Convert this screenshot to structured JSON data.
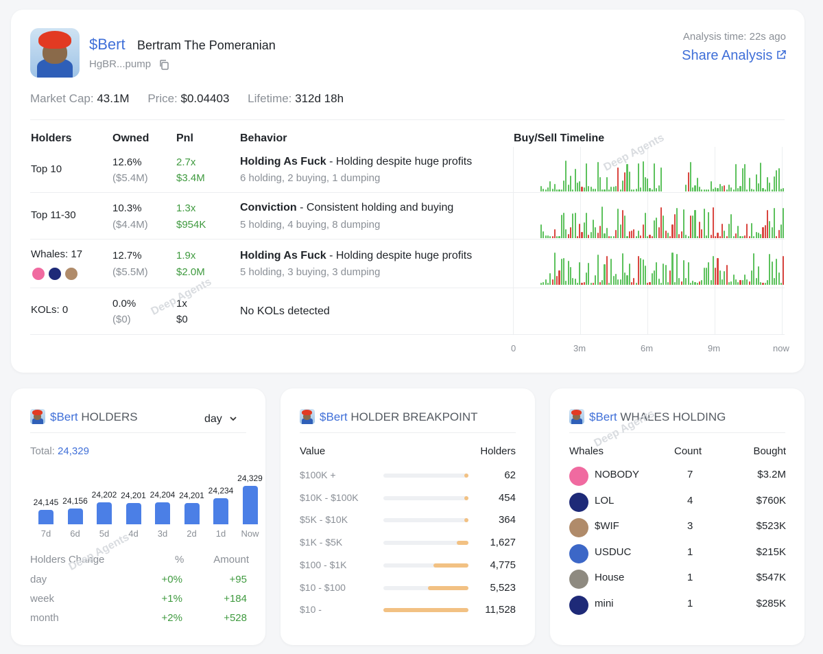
{
  "token": {
    "symbol": "$Bert",
    "name": "Bertram The Pomeranian",
    "address": "HgBR...pump",
    "analysis_time": "Analysis time: 22s ago",
    "share_label": "Share Analysis"
  },
  "stats": {
    "market_cap_label": "Market Cap:",
    "market_cap": "43.1M",
    "price_label": "Price:",
    "price": "$0.04403",
    "lifetime_label": "Lifetime:",
    "lifetime": "312d 18h"
  },
  "table": {
    "headers": [
      "Holders",
      "Owned",
      "Pnl",
      "Behavior",
      "Buy/Sell Timeline"
    ],
    "rows": [
      {
        "holder": "Top 10",
        "owned_pct": "12.6%",
        "owned_usd": "($5.4M)",
        "pnl_x": "2.7x",
        "pnl_usd": "$3.4M",
        "behavior_title": "Holding As Fuck",
        "behavior_desc": " - Holding despite huge profits",
        "behavior_stats": "6 holding, 2 buying, 1 dumping"
      },
      {
        "holder": "Top 11-30",
        "owned_pct": "10.3%",
        "owned_usd": "($4.4M)",
        "pnl_x": "1.3x",
        "pnl_usd": "$954K",
        "behavior_title": "Conviction",
        "behavior_desc": " - Consistent holding and buying",
        "behavior_stats": "5 holding, 4 buying, 8 dumping"
      },
      {
        "holder": "Whales: 17",
        "owned_pct": "12.7%",
        "owned_usd": "($5.5M)",
        "pnl_x": "1.9x",
        "pnl_usd": "$2.0M",
        "behavior_title": "Holding As Fuck",
        "behavior_desc": " - Holding despite huge profits",
        "behavior_stats": "5 holding, 3 buying, 3 dumping"
      },
      {
        "holder": "KOLs: 0",
        "owned_pct": "0.0%",
        "owned_usd": "($0)",
        "pnl_x": "1x",
        "pnl_usd": "$0",
        "behavior_title": "",
        "behavior_desc": "No KOLs detected",
        "behavior_stats": ""
      }
    ],
    "timeline_ticks": [
      "0",
      "3m",
      "6m",
      "9m",
      "now"
    ]
  },
  "watermark": "Deep Agents",
  "holders_panel": {
    "symbol": "$Bert",
    "title": "HOLDERS",
    "period": "day",
    "total_label": "Total:",
    "total": "24,329",
    "chart_data": {
      "type": "bar",
      "categories": [
        "7d",
        "6d",
        "5d",
        "4d",
        "3d",
        "2d",
        "1d",
        "Now"
      ],
      "values": [
        24145,
        24156,
        24202,
        24201,
        24204,
        24201,
        24234,
        24329
      ],
      "labels": [
        "24,145",
        "24,156",
        "24,202",
        "24,201",
        "24,204",
        "24,201",
        "24,234",
        "24,329"
      ]
    },
    "change_headers": [
      "Holders Change",
      "%",
      "Amount"
    ],
    "changes": [
      {
        "period": "day",
        "pct": "+0%",
        "amount": "+95"
      },
      {
        "period": "week",
        "pct": "+1%",
        "amount": "+184"
      },
      {
        "period": "month",
        "pct": "+2%",
        "amount": "+528"
      }
    ]
  },
  "breakpoint_panel": {
    "symbol": "$Bert",
    "title": "HOLDER BREAKPOINT",
    "headers": [
      "Value",
      "Holders"
    ],
    "rows": [
      {
        "range": "$100K +",
        "holders": "62",
        "frac": 0.005
      },
      {
        "range": "$10K - $100K",
        "holders": "454",
        "frac": 0.039
      },
      {
        "range": "$5K - $10K",
        "holders": "364",
        "frac": 0.032
      },
      {
        "range": "$1K - $5K",
        "holders": "1,627",
        "frac": 0.141
      },
      {
        "range": "$100 - $1K",
        "holders": "4,775",
        "frac": 0.414
      },
      {
        "range": "$10 - $100",
        "holders": "5,523",
        "frac": 0.479
      },
      {
        "range": "$10 -",
        "holders": "11,528",
        "frac": 1.0
      }
    ]
  },
  "whales_panel": {
    "symbol": "$Bert",
    "title": "WHALES HOLDING",
    "headers": [
      "Whales",
      "Count",
      "Bought"
    ],
    "rows": [
      {
        "name": "NOBODY",
        "count": "7",
        "bought": "$3.2M",
        "color": "#f06aa0"
      },
      {
        "name": "LOL",
        "count": "4",
        "bought": "$760K",
        "color": "#1e2a78"
      },
      {
        "name": "$WIF",
        "count": "3",
        "bought": "$523K",
        "color": "#b08b6a"
      },
      {
        "name": "USDUC",
        "count": "1",
        "bought": "$215K",
        "color": "#3c67c7"
      },
      {
        "name": "House",
        "count": "1",
        "bought": "$547K",
        "color": "#8e8a80"
      },
      {
        "name": "mini",
        "count": "1",
        "bought": "$285K",
        "color": "#1e2a78"
      }
    ]
  },
  "colors": {
    "accent": "#3f6fd8",
    "positive": "#3f9a3f",
    "buy": "#5cc15c",
    "sell": "#d9453f",
    "bar": "#4b7fe6",
    "breakpoint": "#f2c183"
  }
}
